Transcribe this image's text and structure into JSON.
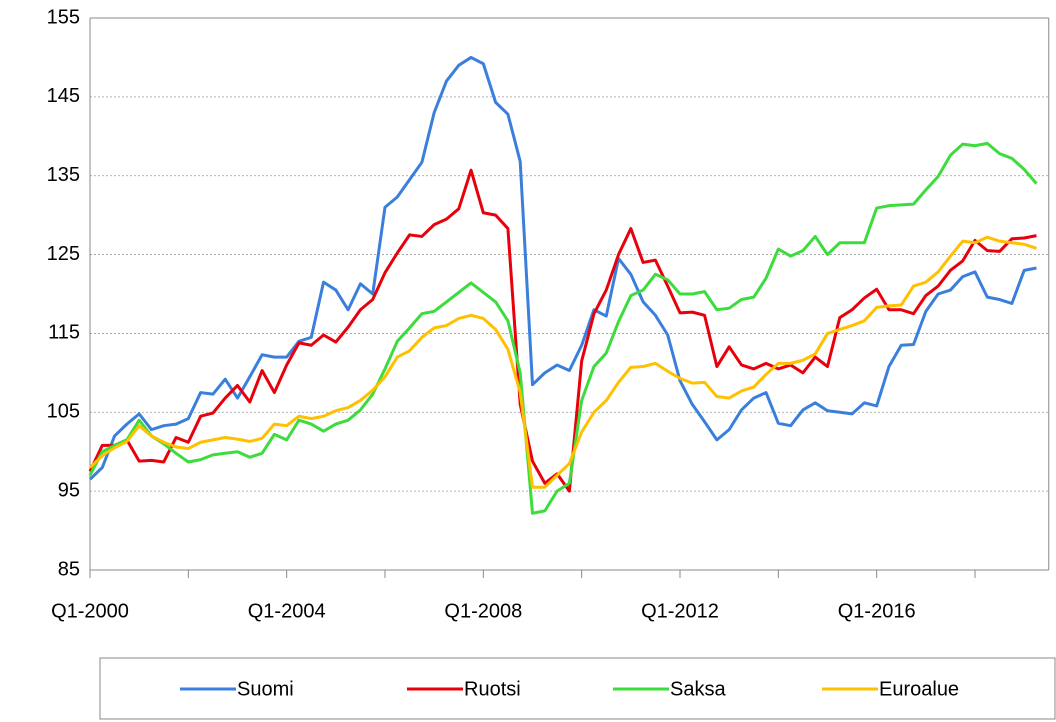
{
  "chart_data": {
    "type": "line",
    "categories": [
      "Q1-2000",
      null,
      null,
      null,
      null,
      null,
      null,
      null,
      null,
      null,
      null,
      null,
      null,
      null,
      null,
      null,
      "Q1-2004",
      null,
      null,
      null,
      null,
      null,
      null,
      null,
      null,
      null,
      null,
      null,
      null,
      null,
      null,
      null,
      "Q1-2008",
      null,
      null,
      null,
      null,
      null,
      null,
      null,
      null,
      null,
      null,
      null,
      null,
      null,
      null,
      null,
      "Q1-2012",
      null,
      null,
      null,
      null,
      null,
      null,
      null,
      null,
      null,
      null,
      null,
      null,
      null,
      null,
      null,
      "Q1-2016",
      null,
      null,
      null,
      null,
      null,
      null,
      null,
      null,
      null,
      null,
      null,
      null,
      null
    ],
    "series": [
      {
        "name": "Suomi",
        "color": "#3a7fdc",
        "values": [
          96.5,
          98,
          102,
          103.5,
          104.8,
          102.8,
          103.3,
          103.5,
          104.2,
          107.5,
          107.3,
          109.2,
          106.8,
          109.5,
          112.3,
          112,
          112,
          114,
          114.5,
          121.5,
          120.5,
          118,
          121.3,
          120,
          131,
          132.3,
          134.5,
          136.7,
          143,
          147,
          149,
          150,
          149.2,
          144.3,
          142.8,
          136.8,
          108.5,
          110,
          111,
          110.3,
          113.5,
          118,
          117.2,
          124.5,
          122.5,
          119,
          117.3,
          114.8,
          109,
          106,
          103.8,
          101.5,
          102.8,
          105.3,
          106.8,
          107.5,
          103.6,
          103.3,
          105.3,
          106.2,
          105.2,
          105,
          104.8,
          106.2,
          105.8,
          110.8,
          113.5,
          113.6,
          117.8,
          120,
          120.5,
          122.2,
          122.8,
          119.6,
          119.3,
          118.8,
          123,
          123.3
        ]
      },
      {
        "name": "Ruotsi",
        "color": "#e8000b",
        "values": [
          97.5,
          100.8,
          100.8,
          101.5,
          98.8,
          98.9,
          98.7,
          101.8,
          101.2,
          104.5,
          104.9,
          106.8,
          108.4,
          106.3,
          110.3,
          107.5,
          111,
          113.8,
          113.5,
          114.8,
          113.9,
          115.8,
          118,
          119.3,
          122.7,
          125.2,
          127.5,
          127.3,
          128.8,
          129.5,
          130.8,
          135.7,
          130.3,
          130,
          128.3,
          106,
          98.8,
          96,
          97.2,
          95,
          111.5,
          117.5,
          120.5,
          125,
          128.3,
          124,
          124.3,
          121,
          117.6,
          117.7,
          117.3,
          110.8,
          113.3,
          111,
          110.5,
          111.2,
          110.5,
          111,
          110,
          112,
          110.8,
          117,
          118,
          119.5,
          120.6,
          118,
          118,
          117.5,
          119.8,
          121,
          123,
          124.2,
          126.8,
          125.5,
          125.4,
          127,
          127.1,
          127.4
        ]
      },
      {
        "name": "Saksa",
        "color": "#3ddc3d",
        "values": [
          97,
          100,
          100.8,
          101.5,
          104,
          102,
          101,
          99.8,
          98.7,
          99,
          99.6,
          99.8,
          100,
          99.3,
          99.8,
          102.2,
          101.5,
          104,
          103.5,
          102.6,
          103.5,
          104,
          105.3,
          107.3,
          110.5,
          114,
          115.7,
          117.5,
          117.8,
          119,
          120.2,
          121.4,
          120.2,
          119,
          116.6,
          110,
          92.2,
          92.5,
          95,
          96,
          106.5,
          110.8,
          112.5,
          116.5,
          119.8,
          120.5,
          122.5,
          121.8,
          120,
          120,
          120.3,
          118,
          118.2,
          119.3,
          119.6,
          122,
          125.7,
          124.8,
          125.5,
          127.3,
          125,
          126.5,
          126.5,
          126.5,
          130.9,
          131.2,
          131.3,
          131.4,
          133.2,
          134.9,
          137.6,
          139,
          138.8,
          139.1,
          137.8,
          137.2,
          135.8,
          134
        ]
      },
      {
        "name": "Euroalue",
        "color": "#ffc000",
        "values": [
          98,
          99.5,
          100.5,
          101.3,
          103.3,
          102,
          101.2,
          100.6,
          100.4,
          101.2,
          101.5,
          101.8,
          101.6,
          101.3,
          101.7,
          103.5,
          103.3,
          104.5,
          104.2,
          104.5,
          105.2,
          105.6,
          106.5,
          107.8,
          109.5,
          112,
          112.8,
          114.5,
          115.7,
          116,
          116.9,
          117.3,
          116.9,
          115.5,
          113,
          107.5,
          95.5,
          95.5,
          97,
          98.5,
          102.5,
          105,
          106.5,
          108.8,
          110.7,
          110.8,
          111.2,
          110.2,
          109.3,
          108.7,
          108.8,
          107,
          106.8,
          107.7,
          108.2,
          109.8,
          111.2,
          111.2,
          111.6,
          112.4,
          115,
          115.5,
          116,
          116.6,
          118.3,
          118.5,
          118.6,
          121,
          121.5,
          122.8,
          124.8,
          126.7,
          126.5,
          127.2,
          126.7,
          126.5,
          126.3,
          125.8
        ]
      }
    ],
    "ylim": [
      85,
      155
    ],
    "yticks": [
      85,
      95,
      105,
      115,
      125,
      135,
      145,
      155
    ],
    "grid": true
  }
}
